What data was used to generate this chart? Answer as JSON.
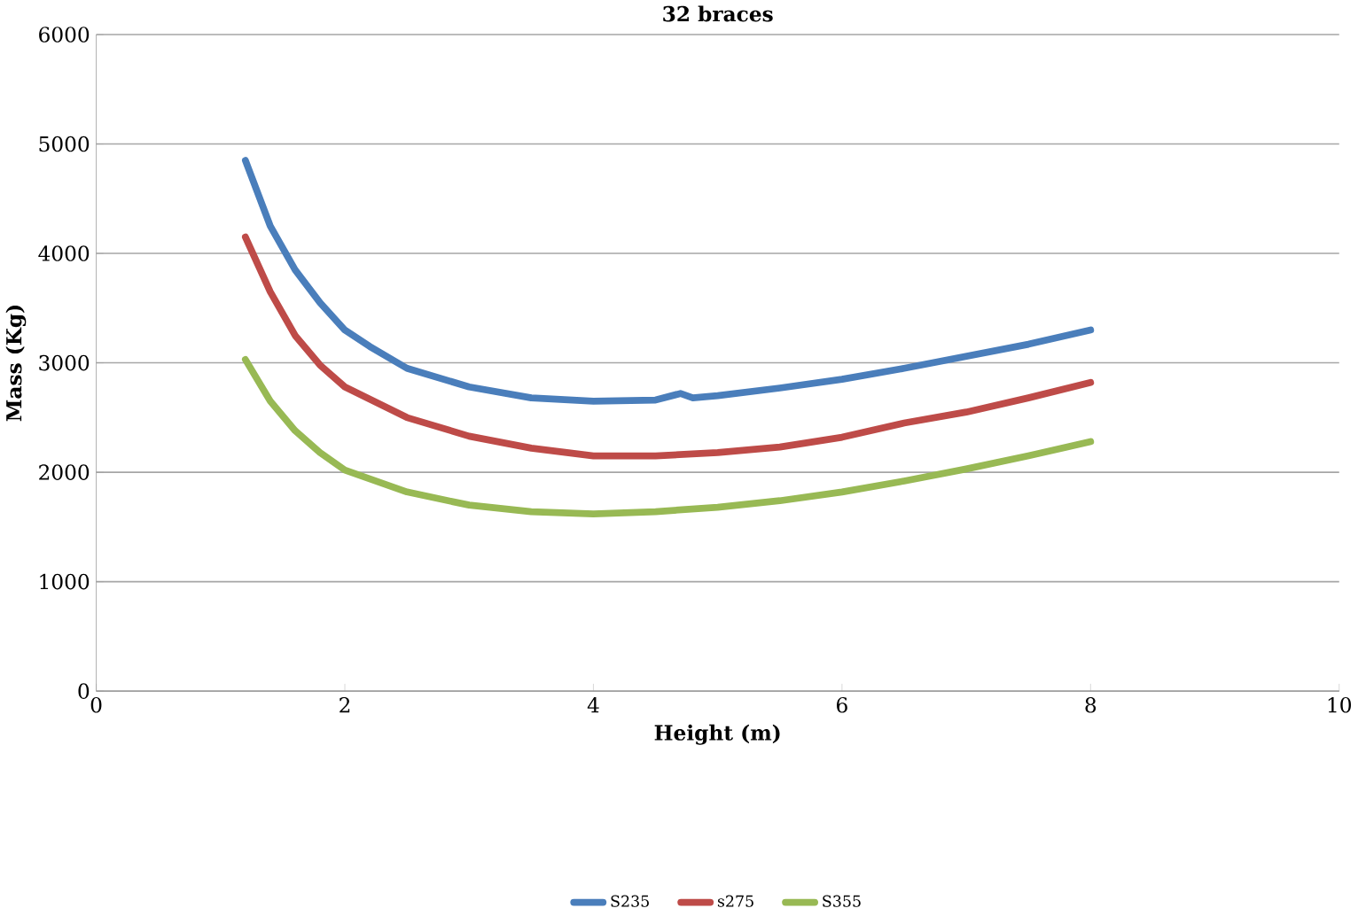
{
  "chart_data": {
    "type": "line",
    "title": "32 braces",
    "xlabel": "Height (m)",
    "ylabel": "Mass (Kg)",
    "xlim": [
      0,
      10
    ],
    "xticks": [
      0,
      2,
      4,
      6,
      8,
      10
    ],
    "ylim": [
      0,
      6000
    ],
    "yticks": [
      0,
      1000,
      2000,
      3000,
      4000,
      5000,
      6000
    ],
    "grid": "y",
    "legend": "bottom",
    "marker": "none",
    "line_style": "solid",
    "series": [
      {
        "name": "S235",
        "color": "#4a7ebb",
        "x": [
          1.2,
          1.4,
          1.6,
          1.8,
          2.0,
          2.2,
          2.5,
          3.0,
          3.5,
          4.0,
          4.5,
          4.7,
          4.8,
          5.0,
          5.5,
          6.0,
          6.5,
          7.0,
          7.5,
          8.0
        ],
        "values": [
          4850,
          4250,
          3850,
          3550,
          3300,
          3150,
          2950,
          2780,
          2680,
          2650,
          2660,
          2720,
          2680,
          2700,
          2770,
          2850,
          2950,
          3060,
          3170,
          3300
        ]
      },
      {
        "name": "s275",
        "color": "#be4b48",
        "x": [
          1.2,
          1.4,
          1.6,
          1.8,
          2.0,
          2.5,
          3.0,
          3.5,
          4.0,
          4.5,
          5.0,
          5.5,
          6.0,
          6.5,
          7.0,
          7.5,
          8.0
        ],
        "values": [
          4150,
          3650,
          3250,
          2980,
          2780,
          2500,
          2330,
          2220,
          2150,
          2150,
          2180,
          2230,
          2320,
          2450,
          2550,
          2680,
          2820
        ]
      },
      {
        "name": "S355",
        "color": "#98b954",
        "x": [
          1.2,
          1.4,
          1.6,
          1.8,
          2.0,
          2.5,
          3.0,
          3.5,
          4.0,
          4.5,
          5.0,
          5.5,
          6.0,
          6.5,
          7.0,
          7.5,
          8.0
        ],
        "values": [
          3030,
          2650,
          2380,
          2180,
          2020,
          1820,
          1700,
          1640,
          1620,
          1640,
          1680,
          1740,
          1820,
          1920,
          2030,
          2150,
          2280
        ]
      }
    ]
  }
}
